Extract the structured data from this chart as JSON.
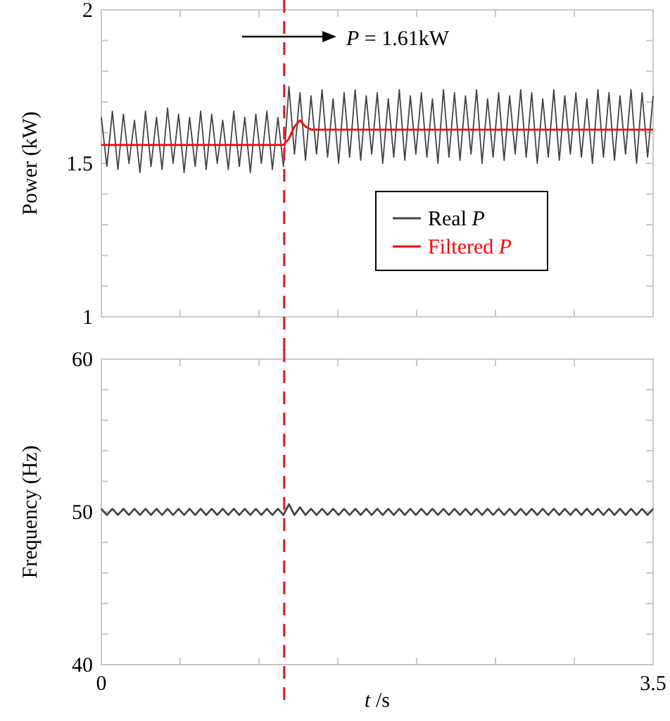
{
  "chart_data": [
    {
      "type": "line",
      "ylabel": "Power  (kW)",
      "xlim": [
        0,
        3.5
      ],
      "ylim": [
        1,
        2
      ],
      "xticks": [
        {
          "value": 0.5,
          "label": null
        },
        {
          "value": 1,
          "label": null
        },
        {
          "value": 1.5,
          "label": null
        },
        {
          "value": 2,
          "label": null
        },
        {
          "value": 2.5,
          "label": null
        },
        {
          "value": 3,
          "label": null
        }
      ],
      "yticks": [
        1,
        {
          "value": 1.1,
          "label": null
        },
        {
          "value": 1.2,
          "label": null
        },
        {
          "value": 1.3,
          "label": null
        },
        {
          "value": 1.4,
          "label": null
        },
        1.5,
        {
          "value": 1.6,
          "label": null
        },
        {
          "value": 1.7,
          "label": null
        },
        {
          "value": 1.8,
          "label": null
        },
        {
          "value": 1.9,
          "label": null
        },
        2
      ],
      "tick_labels": "y",
      "legend": "right",
      "annotations": [
        "P = 1.61kW"
      ],
      "ref_lines": [
        {
          "axis": "x",
          "value": 1.16,
          "color": "#e02020",
          "line_style": "dashed"
        }
      ],
      "x": [
        0,
        0.035,
        0.07,
        0.105,
        0.14,
        0.175,
        0.21,
        0.245,
        0.28,
        0.315,
        0.35,
        0.385,
        0.42,
        0.455,
        0.49,
        0.525,
        0.56,
        0.595,
        0.63,
        0.665,
        0.7,
        0.735,
        0.77,
        0.805,
        0.84,
        0.875,
        0.91,
        0.945,
        0.98,
        1.015,
        1.05,
        1.085,
        1.12,
        1.155,
        1.19,
        1.225,
        1.26,
        1.295,
        1.33,
        1.365,
        1.4,
        1.435,
        1.47,
        1.505,
        1.54,
        1.575,
        1.61,
        1.645,
        1.68,
        1.715,
        1.75,
        1.785,
        1.82,
        1.855,
        1.89,
        1.925,
        1.96,
        1.995,
        2.03,
        2.065,
        2.1,
        2.135,
        2.17,
        2.205,
        2.24,
        2.275,
        2.31,
        2.345,
        2.38,
        2.415,
        2.45,
        2.485,
        2.52,
        2.555,
        2.59,
        2.625,
        2.66,
        2.695,
        2.73,
        2.765,
        2.8,
        2.835,
        2.87,
        2.905,
        2.94,
        2.975,
        3.01,
        3.045,
        3.08,
        3.115,
        3.15,
        3.185,
        3.22,
        3.255,
        3.29,
        3.325,
        3.36,
        3.395,
        3.43,
        3.465,
        3.5
      ],
      "series": [
        {
          "name": "Real P",
          "color": "#444444",
          "values": [
            1.65,
            1.49,
            1.67,
            1.48,
            1.66,
            1.5,
            1.64,
            1.47,
            1.67,
            1.49,
            1.65,
            1.48,
            1.68,
            1.5,
            1.66,
            1.47,
            1.65,
            1.49,
            1.67,
            1.48,
            1.66,
            1.5,
            1.64,
            1.48,
            1.67,
            1.49,
            1.65,
            1.47,
            1.66,
            1.5,
            1.67,
            1.48,
            1.65,
            1.49,
            1.75,
            1.53,
            1.73,
            1.51,
            1.72,
            1.53,
            1.74,
            1.52,
            1.71,
            1.5,
            1.73,
            1.52,
            1.74,
            1.51,
            1.72,
            1.53,
            1.73,
            1.5,
            1.71,
            1.52,
            1.74,
            1.51,
            1.72,
            1.53,
            1.73,
            1.52,
            1.71,
            1.5,
            1.74,
            1.52,
            1.73,
            1.51,
            1.72,
            1.53,
            1.74,
            1.5,
            1.71,
            1.52,
            1.73,
            1.51,
            1.72,
            1.53,
            1.74,
            1.52,
            1.73,
            1.5,
            1.71,
            1.52,
            1.74,
            1.51,
            1.72,
            1.53,
            1.73,
            1.52,
            1.71,
            1.5,
            1.74,
            1.52,
            1.73,
            1.51,
            1.72,
            1.53,
            1.74,
            1.5,
            1.73,
            1.52,
            1.72
          ]
        },
        {
          "name": "Filtered P",
          "color": "#ff0000",
          "x": [
            0,
            1.155,
            1.19,
            1.225,
            1.26,
            1.295,
            1.33,
            3.5
          ],
          "values": [
            1.56,
            1.56,
            1.58,
            1.62,
            1.64,
            1.62,
            1.61,
            1.61
          ]
        }
      ]
    },
    {
      "type": "line",
      "ylabel": "Frequency  (Hz)",
      "xlabel": "t /s",
      "xlim": [
        0,
        3.5
      ],
      "ylim": [
        40,
        60
      ],
      "xticks": [
        0,
        {
          "value": 0.5,
          "label": null
        },
        {
          "value": 1,
          "label": null
        },
        {
          "value": 1.5,
          "label": null
        },
        {
          "value": 2,
          "label": null
        },
        {
          "value": 2.5,
          "label": null
        },
        {
          "value": 3,
          "label": null
        },
        3.5
      ],
      "yticks": [
        40,
        {
          "value": 42,
          "label": null
        },
        {
          "value": 44,
          "label": null
        },
        {
          "value": 46,
          "label": null
        },
        {
          "value": 48,
          "label": null
        },
        50,
        {
          "value": 52,
          "label": null
        },
        {
          "value": 54,
          "label": null
        },
        {
          "value": 56,
          "label": null
        },
        {
          "value": 58,
          "label": null
        },
        60
      ],
      "ref_lines": [
        {
          "axis": "x",
          "value": 1.16,
          "color": "#e02020",
          "line_style": "dashed"
        }
      ],
      "x": [
        0,
        0.035,
        0.07,
        0.105,
        0.14,
        0.175,
        0.21,
        0.245,
        0.28,
        0.315,
        0.35,
        0.385,
        0.42,
        0.455,
        0.49,
        0.525,
        0.56,
        0.595,
        0.63,
        0.665,
        0.7,
        0.735,
        0.77,
        0.805,
        0.84,
        0.875,
        0.91,
        0.945,
        0.98,
        1.015,
        1.05,
        1.085,
        1.12,
        1.155,
        1.19,
        1.225,
        1.26,
        1.295,
        1.33,
        1.365,
        1.4,
        1.435,
        1.47,
        1.505,
        1.54,
        1.575,
        1.61,
        1.645,
        1.68,
        1.715,
        1.75,
        1.785,
        1.82,
        1.855,
        1.89,
        1.925,
        1.96,
        1.995,
        2.03,
        2.065,
        2.1,
        2.135,
        2.17,
        2.205,
        2.24,
        2.275,
        2.31,
        2.345,
        2.38,
        2.415,
        2.45,
        2.485,
        2.52,
        2.555,
        2.59,
        2.625,
        2.66,
        2.695,
        2.73,
        2.765,
        2.8,
        2.835,
        2.87,
        2.905,
        2.94,
        2.975,
        3.01,
        3.045,
        3.08,
        3.115,
        3.15,
        3.185,
        3.22,
        3.255,
        3.29,
        3.325,
        3.36,
        3.395,
        3.43,
        3.465,
        3.5
      ],
      "series": [
        {
          "color": "#444444",
          "values": [
            50.2,
            49.8,
            50.2,
            49.8,
            50.2,
            49.8,
            50.2,
            49.8,
            50.2,
            49.8,
            50.2,
            49.8,
            50.2,
            49.8,
            50.2,
            49.8,
            50.2,
            49.8,
            50.2,
            49.8,
            50.2,
            49.8,
            50.2,
            49.8,
            50.2,
            49.8,
            50.2,
            49.8,
            50.2,
            49.8,
            50.2,
            49.8,
            50.2,
            49.8,
            50.5,
            49.8,
            50.3,
            49.8,
            50.2,
            49.8,
            50.2,
            49.8,
            50.2,
            49.8,
            50.2,
            49.8,
            50.2,
            49.8,
            50.2,
            49.8,
            50.2,
            49.8,
            50.2,
            49.8,
            50.2,
            49.8,
            50.2,
            49.8,
            50.2,
            49.8,
            50.2,
            49.8,
            50.2,
            49.8,
            50.2,
            49.8,
            50.2,
            49.8,
            50.2,
            49.8,
            50.2,
            49.8,
            50.2,
            49.8,
            50.2,
            49.8,
            50.2,
            49.8,
            50.2,
            49.8,
            50.2,
            49.8,
            50.2,
            49.8,
            50.2,
            49.8,
            50.2,
            49.8,
            50.2,
            49.8,
            50.2,
            49.8,
            50.2,
            49.8,
            50.2,
            49.8,
            50.2,
            49.8,
            50.2,
            49.8,
            50.2
          ]
        }
      ]
    }
  ]
}
